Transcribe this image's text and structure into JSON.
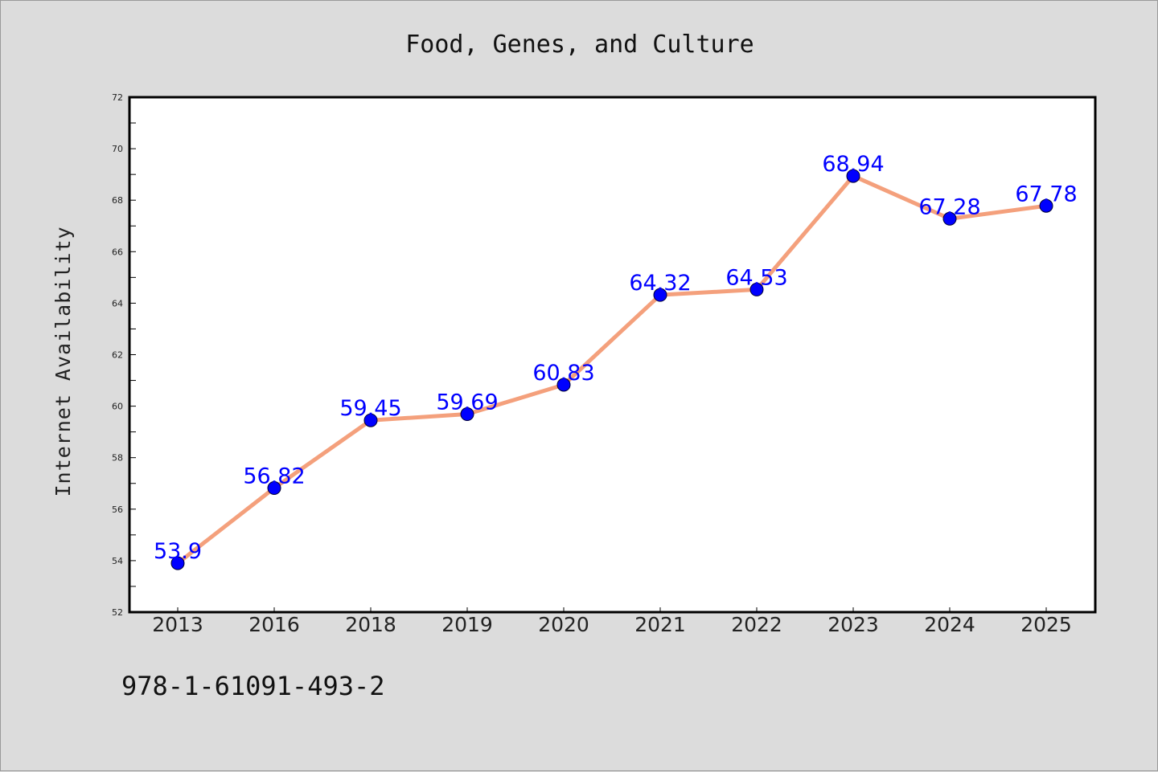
{
  "chart_data": {
    "type": "line",
    "title": "Food, Genes, and Culture",
    "xlabel": "",
    "ylabel": "Internet Availability",
    "categories": [
      "2013",
      "2016",
      "2018",
      "2019",
      "2020",
      "2021",
      "2022",
      "2023",
      "2024",
      "2025"
    ],
    "series": [
      {
        "values": [
          53.9,
          56.82,
          59.45,
          59.69,
          60.83,
          64.32,
          64.53,
          68.94,
          67.28,
          67.78
        ],
        "labels": [
          "53.9",
          "56.82",
          "59.45",
          "59.69",
          "60.83",
          "64.32",
          "64.53",
          "68.94",
          "67.28",
          "67.78"
        ]
      }
    ],
    "ylim": [
      52,
      72
    ],
    "yticks": [
      "52",
      "54",
      "56",
      "58",
      "60",
      "62",
      "64",
      "66",
      "68",
      "70",
      "72"
    ],
    "grid": false,
    "legend": "none",
    "colors": {
      "line": "#f4a07c",
      "marker": "#0000ff",
      "data_label": "#0000ff",
      "background": "#dcdcdc",
      "plot_area": "#ffffff"
    }
  },
  "footer_text": "978-1-61091-493-2"
}
